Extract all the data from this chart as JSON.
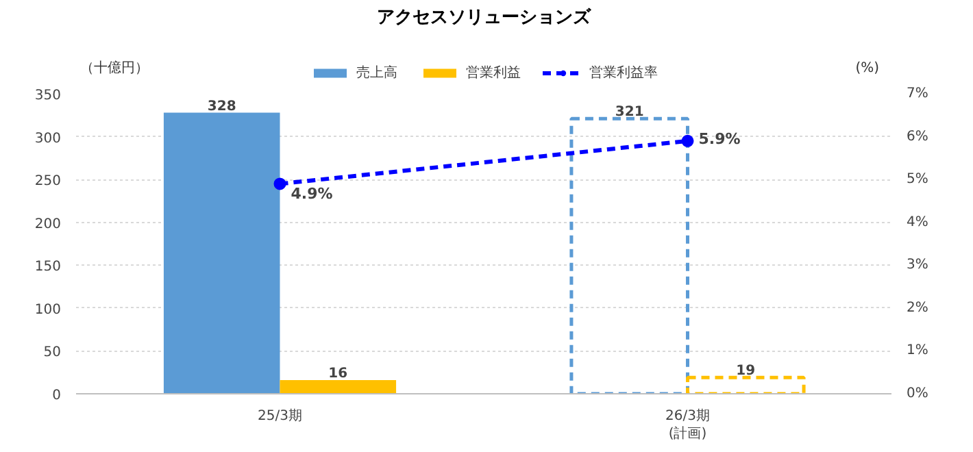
{
  "chart_data": {
    "type": "bar",
    "title": "アクセスソリューションズ",
    "ylabel": "（十億円）",
    "y2label": "(%)",
    "categories": [
      "25/3期",
      "26/3期\n(計画)"
    ],
    "series": [
      {
        "name": "売上高",
        "color": "#5b9bd5",
        "values": [
          328,
          null
        ]
      },
      {
        "name": "営業利益",
        "color": "#ffc000",
        "values": [
          16,
          null
        ]
      },
      {
        "color": "#5b9bd5",
        "values": [
          null,
          321
        ],
        "line_style": "dashed"
      },
      {
        "color": "#ffc000",
        "values": [
          null,
          19
        ],
        "line_style": "dashed"
      },
      {
        "name": "営業利益率",
        "type": "line",
        "axis": "y2",
        "color": "#0000ff",
        "values": [
          4.9,
          5.9
        ],
        "value_labels": [
          "4.9%",
          "5.9%"
        ],
        "marker": "circle",
        "line_style": "dashed"
      }
    ],
    "data_labels": true,
    "ylim": [
      0,
      350
    ],
    "yticks": [
      0,
      50,
      100,
      150,
      200,
      250,
      300,
      350
    ],
    "y2lim": [
      0,
      7
    ],
    "y2ticks": [
      {
        "value": 0,
        "label": "0%"
      },
      {
        "value": 1,
        "label": "1%"
      },
      {
        "value": 2,
        "label": "2%"
      },
      {
        "value": 3,
        "label": "3%"
      },
      {
        "value": 4,
        "label": "4%"
      },
      {
        "value": 5,
        "label": "5%"
      },
      {
        "value": 6,
        "label": "6%"
      },
      {
        "value": 7,
        "label": "7%"
      }
    ],
    "grid": "y",
    "legend": "top"
  }
}
